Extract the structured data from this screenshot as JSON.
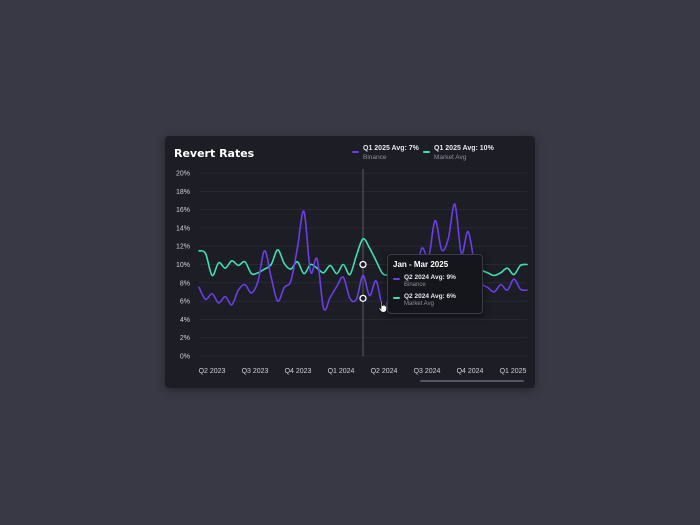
{
  "chart_data": {
    "type": "line",
    "title": "Revert Rates",
    "xlabel": "",
    "ylabel": "",
    "ylim": [
      0,
      20
    ],
    "y_ticks": [
      0,
      2,
      4,
      6,
      8,
      10,
      12,
      14,
      16,
      18,
      20
    ],
    "y_tick_labels": [
      "0%",
      "2%",
      "4%",
      "6%",
      "8%",
      "10%",
      "12%",
      "14%",
      "16%",
      "18%",
      "20%"
    ],
    "x_ticks": [
      "Q2 2023",
      "Q3 2023",
      "Q4 2023",
      "Q1 2024",
      "Q2 2024",
      "Q3 2024",
      "Q4 2024",
      "Q1 2025"
    ],
    "grid": true,
    "legend_position": "top-right",
    "series": [
      {
        "name": "Binance",
        "color": "#6c3ee8",
        "values": [
          7.5,
          6.2,
          6.8,
          5.8,
          6.5,
          5.6,
          7.2,
          7.8,
          6.9,
          8.2,
          11.5,
          8.6,
          6.0,
          7.5,
          8.2,
          11.8,
          15.8,
          9.2,
          10.6,
          5.2,
          6.4,
          7.6,
          8.6,
          6.3,
          6.2,
          8.8,
          6.6,
          8.2,
          5.4,
          6.2,
          7.2,
          9.8,
          11.0,
          9.5,
          11.8,
          10.8,
          14.8,
          11.6,
          12.8,
          16.6,
          11.2,
          13.6,
          10.2,
          8.0,
          7.5,
          7.0,
          7.8,
          7.2,
          8.4,
          7.3,
          7.2
        ]
      },
      {
        "name": "Market Avg",
        "color": "#3fe0b0",
        "values": [
          11.5,
          11.2,
          8.8,
          10.2,
          9.6,
          10.4,
          9.9,
          10.3,
          9.0,
          9.1,
          9.5,
          10.0,
          11.6,
          10.1,
          9.5,
          10.3,
          9.0,
          10.0,
          9.6,
          9.1,
          9.9,
          9.0,
          10.0,
          8.9,
          11.0,
          12.8,
          11.8,
          10.4,
          9.0,
          8.8,
          8.2,
          8.6,
          8.2,
          9.0,
          8.4,
          10.6,
          9.6,
          10.9,
          8.8,
          10.1,
          9.6,
          9.4,
          10.9,
          9.5,
          9.1,
          8.8,
          9.1,
          9.6,
          8.9,
          9.9,
          10.0
        ]
      }
    ],
    "legend": [
      {
        "label": "Q1 2025 Avg: 7%",
        "series": "Binance",
        "color": "#6c3ee8"
      },
      {
        "label": "Q1 2025 Avg: 10%",
        "series": "Market Avg",
        "color": "#3fe0b0"
      }
    ],
    "hover_index": 25,
    "tooltip": {
      "title": "Jan - Mar 2025",
      "rows": [
        {
          "label": "Q2 2024 Avg: 9%",
          "series": "Binance",
          "color": "#6c3ee8"
        },
        {
          "label": "Q2 2024 Avg: 6%",
          "series": "Market Avg",
          "color": "#3fe0b0"
        }
      ]
    }
  },
  "icons": {
    "cursor": "hand-pointer-icon"
  }
}
